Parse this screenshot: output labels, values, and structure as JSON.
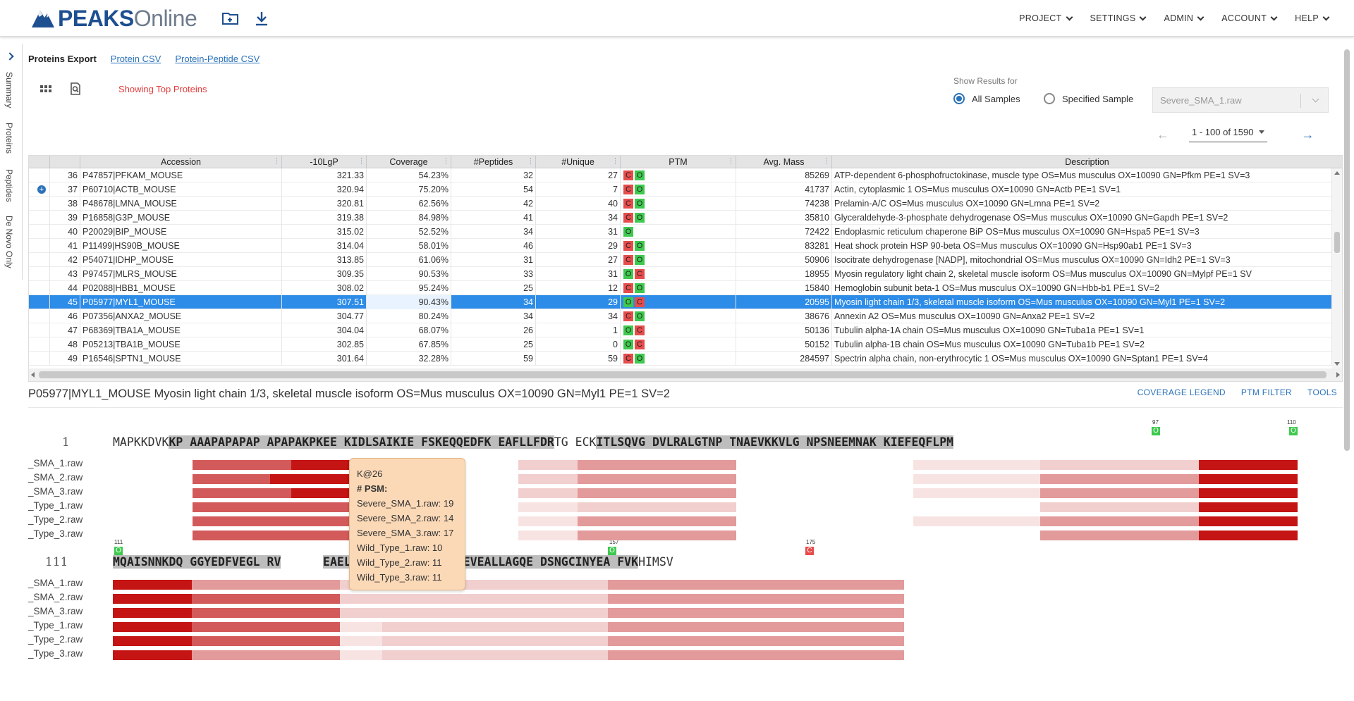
{
  "header": {
    "logo_bold": "PEAKS",
    "logo_light": "Online",
    "nav": [
      "PROJECT",
      "SETTINGS",
      "ADMIN",
      "ACCOUNT",
      "HELP"
    ]
  },
  "rail": {
    "tabs": [
      "Summary",
      "Proteins",
      "Peptides",
      "De Novo Only"
    ]
  },
  "export": {
    "label": "Proteins Export",
    "protein_csv": "Protein CSV",
    "protein_peptide_csv": "Protein-Peptide CSV"
  },
  "showing": "Showing Top Proteins",
  "show_results": {
    "label": "Show Results for",
    "all": "All Samples",
    "specified": "Specified Sample",
    "selected_sample": "Severe_SMA_1.raw"
  },
  "pager": {
    "range": "1 - 100 of 1590"
  },
  "table": {
    "columns": [
      "Accession",
      "-10LgP",
      "Coverage",
      "#Peptides",
      "#Unique",
      "PTM",
      "Avg. Mass",
      "Description"
    ],
    "rows": [
      {
        "idx": "36",
        "acc": "P47857|PFKAM_MOUSE",
        "lgp": "321.33",
        "cov": "54.23%",
        "pep": "32",
        "uniq": "27",
        "ptm": [
          "C",
          "O"
        ],
        "mass": "85269",
        "desc": "ATP-dependent 6-phosphofructokinase, muscle type OS=Mus musculus OX=10090 GN=Pfkm PE=1 SV=3"
      },
      {
        "idx": "37",
        "acc": "P60710|ACTB_MOUSE",
        "lgp": "320.94",
        "cov": "75.20%",
        "pep": "54",
        "uniq": "7",
        "ptm": [
          "C",
          "O"
        ],
        "mass": "41737",
        "desc": "Actin, cytoplasmic 1 OS=Mus musculus OX=10090 GN=Actb PE=1 SV=1"
      },
      {
        "idx": "38",
        "acc": "P48678|LMNA_MOUSE",
        "lgp": "320.81",
        "cov": "62.56%",
        "pep": "42",
        "uniq": "40",
        "ptm": [
          "C",
          "O"
        ],
        "mass": "74238",
        "desc": "Prelamin-A/C OS=Mus musculus OX=10090 GN=Lmna PE=1 SV=2"
      },
      {
        "idx": "39",
        "acc": "P16858|G3P_MOUSE",
        "lgp": "319.38",
        "cov": "84.98%",
        "pep": "41",
        "uniq": "34",
        "ptm": [
          "C",
          "O"
        ],
        "mass": "35810",
        "desc": "Glyceraldehyde-3-phosphate dehydrogenase OS=Mus musculus OX=10090 GN=Gapdh PE=1 SV=2"
      },
      {
        "idx": "40",
        "acc": "P20029|BIP_MOUSE",
        "lgp": "315.02",
        "cov": "52.52%",
        "pep": "34",
        "uniq": "31",
        "ptm": [
          "O"
        ],
        "mass": "72422",
        "desc": "Endoplasmic reticulum chaperone BiP OS=Mus musculus OX=10090 GN=Hspa5 PE=1 SV=3"
      },
      {
        "idx": "41",
        "acc": "P11499|HS90B_MOUSE",
        "lgp": "314.04",
        "cov": "58.01%",
        "pep": "46",
        "uniq": "29",
        "ptm": [
          "C",
          "O"
        ],
        "mass": "83281",
        "desc": "Heat shock protein HSP 90-beta OS=Mus musculus OX=10090 GN=Hsp90ab1 PE=1 SV=3"
      },
      {
        "idx": "42",
        "acc": "P54071|IDHP_MOUSE",
        "lgp": "313.85",
        "cov": "61.06%",
        "pep": "31",
        "uniq": "27",
        "ptm": [
          "C",
          "O"
        ],
        "mass": "50906",
        "desc": "Isocitrate dehydrogenase [NADP], mitochondrial OS=Mus musculus OX=10090 GN=Idh2 PE=1 SV=3"
      },
      {
        "idx": "43",
        "acc": "P97457|MLRS_MOUSE",
        "lgp": "309.35",
        "cov": "90.53%",
        "pep": "33",
        "uniq": "31",
        "ptm": [
          "O",
          "C"
        ],
        "mass": "18955",
        "desc": "Myosin regulatory light chain 2, skeletal muscle isoform OS=Mus musculus OX=10090 GN=Mylpf PE=1 SV"
      },
      {
        "idx": "44",
        "acc": "P02088|HBB1_MOUSE",
        "lgp": "308.02",
        "cov": "95.24%",
        "pep": "25",
        "uniq": "12",
        "ptm": [
          "C",
          "O"
        ],
        "mass": "15840",
        "desc": "Hemoglobin subunit beta-1 OS=Mus musculus OX=10090 GN=Hbb-b1 PE=1 SV=2"
      },
      {
        "idx": "45",
        "acc": "P05977|MYL1_MOUSE",
        "lgp": "307.51",
        "cov": "90.43%",
        "pep": "34",
        "uniq": "29",
        "ptm": [
          "O",
          "C"
        ],
        "mass": "20595",
        "desc": "Myosin light chain 1/3, skeletal muscle isoform OS=Mus musculus OX=10090 GN=Myl1 PE=1 SV=2"
      },
      {
        "idx": "46",
        "acc": "P07356|ANXA2_MOUSE",
        "lgp": "304.77",
        "cov": "80.24%",
        "pep": "34",
        "uniq": "34",
        "ptm": [
          "C",
          "O"
        ],
        "mass": "38676",
        "desc": "Annexin A2 OS=Mus musculus OX=10090 GN=Anxa2 PE=1 SV=2"
      },
      {
        "idx": "47",
        "acc": "P68369|TBA1A_MOUSE",
        "lgp": "304.04",
        "cov": "68.07%",
        "pep": "26",
        "uniq": "1",
        "ptm": [
          "O",
          "C"
        ],
        "mass": "50136",
        "desc": "Tubulin alpha-1A chain OS=Mus musculus OX=10090 GN=Tuba1a PE=1 SV=1"
      },
      {
        "idx": "48",
        "acc": "P05213|TBA1B_MOUSE",
        "lgp": "302.85",
        "cov": "67.85%",
        "pep": "25",
        "uniq": "0",
        "ptm": [
          "O",
          "C"
        ],
        "mass": "50152",
        "desc": "Tubulin alpha-1B chain OS=Mus musculus OX=10090 GN=Tuba1b PE=1 SV=2"
      },
      {
        "idx": "49",
        "acc": "P16546|SPTN1_MOUSE",
        "lgp": "301.64",
        "cov": "32.28%",
        "pep": "59",
        "uniq": "59",
        "ptm": [
          "C",
          "O"
        ],
        "mass": "284597",
        "desc": "Spectrin alpha chain, non-erythrocytic 1 OS=Mus musculus OX=10090 GN=Sptan1 PE=1 SV=4"
      }
    ]
  },
  "detail": {
    "title": "P05977|MYL1_MOUSE Myosin light chain 1/3, skeletal muscle isoform OS=Mus musculus OX=10090 GN=Myl1 PE=1 SV=2",
    "links": [
      "COVERAGE LEGEND",
      "PTM FILTER",
      "TOOLS"
    ],
    "line1_pos": "1",
    "line2_pos": "111",
    "sample_labels": [
      "_SMA_1.raw",
      "_SMA_2.raw",
      "_SMA_3.raw",
      "_Type_1.raw",
      "_Type_2.raw",
      "_Type_3.raw"
    ],
    "ptm_marks": [
      {
        "pos": "97",
        "type": "O"
      },
      {
        "pos": "110",
        "type": "O"
      },
      {
        "pos": "111",
        "type": "O"
      },
      {
        "pos": "157",
        "type": "O"
      },
      {
        "pos": "175",
        "type": "C"
      }
    ]
  },
  "tooltip": {
    "site": "K@26",
    "psm_label": "# PSM:",
    "lines": [
      "Severe_SMA_1.raw: 19",
      "Severe_SMA_2.raw: 14",
      "Severe_SMA_3.raw: 17",
      "Wild_Type_1.raw: 10",
      "Wild_Type_2.raw: 11",
      "Wild_Type_3.raw: 11"
    ]
  },
  "colors": {
    "accent": "#2b72b8",
    "selected_row": "#2d8ce8",
    "ptm_c": "#e74c4c",
    "ptm_o": "#3ec94e"
  }
}
